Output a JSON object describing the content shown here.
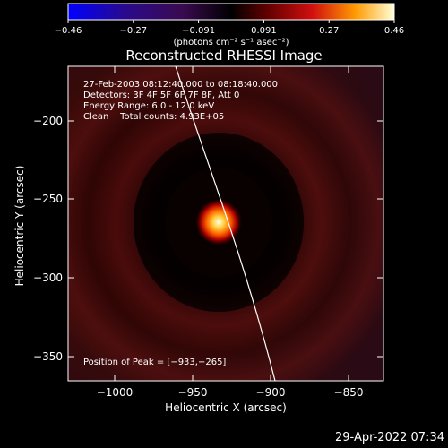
{
  "colorbar": {
    "ticks": [
      "−0.46",
      "−0.27",
      "−0.091",
      "0.091",
      "0.27",
      "0.46"
    ],
    "unit_text": "(photons cm⁻² s⁻¹ asec⁻²)"
  },
  "title": "Reconstructed RHESSI Image",
  "info": {
    "time_range": "27-Feb-2003 08:12:40.000 to 08:18:40.000",
    "detectors": "Detectors: 3F 4F 5F 6F 7F 8F, Att 0",
    "energy": "Energy Range: 6.0 - 12.0 keV",
    "clean": "Clean    Total counts: 4.93E+05"
  },
  "peak_text": "Position of Peak = [−933,−265]",
  "x_axis": {
    "label": "Heliocentric X (arcsec)",
    "ticks": [
      "−1000",
      "−950",
      "−900",
      "−850"
    ]
  },
  "y_axis": {
    "label": "Heliocentric Y (arcsec)",
    "ticks": [
      "−200",
      "−250",
      "−300",
      "−350"
    ]
  },
  "footer_timestamp": "29-Apr-2022 07:34"
}
